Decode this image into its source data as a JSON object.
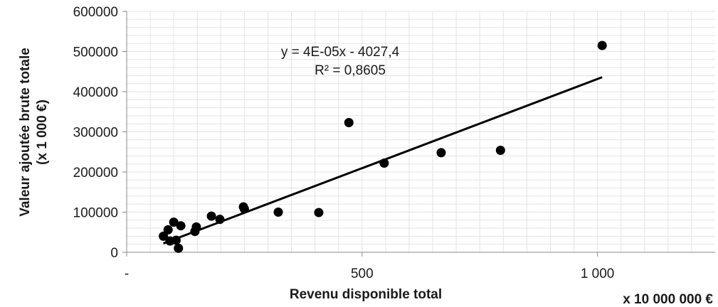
{
  "chart_data": {
    "type": "scatter",
    "xlabel": "Revenu disponible total",
    "xunit": "x 10 000 000 €",
    "ylabel_line1": "Valeur ajoutée brute totale",
    "ylabel_line2": "(x 1 000 €)",
    "xlim": [
      0,
      1250
    ],
    "ylim": [
      0,
      600000
    ],
    "x_ticks": [
      {
        "value": 0,
        "label": "-"
      },
      {
        "value": 500,
        "label": "500"
      },
      {
        "value": 1000,
        "label": "1 000"
      }
    ],
    "y_ticks": [
      {
        "value": 0,
        "label": "0"
      },
      {
        "value": 100000,
        "label": "100000"
      },
      {
        "value": 200000,
        "label": "200000"
      },
      {
        "value": 300000,
        "label": "300000"
      },
      {
        "value": 400000,
        "label": "400000"
      },
      {
        "value": 500000,
        "label": "500000"
      },
      {
        "value": 600000,
        "label": "600000"
      }
    ],
    "grid": true,
    "points": [
      {
        "x": 78,
        "y": 40000
      },
      {
        "x": 88,
        "y": 56000
      },
      {
        "x": 92,
        "y": 28000
      },
      {
        "x": 100,
        "y": 75000
      },
      {
        "x": 105,
        "y": 30000
      },
      {
        "x": 110,
        "y": 10000
      },
      {
        "x": 115,
        "y": 66000
      },
      {
        "x": 145,
        "y": 52000
      },
      {
        "x": 148,
        "y": 63000
      },
      {
        "x": 180,
        "y": 90000
      },
      {
        "x": 198,
        "y": 82000
      },
      {
        "x": 248,
        "y": 113000
      },
      {
        "x": 250,
        "y": 108000
      },
      {
        "x": 322,
        "y": 100000
      },
      {
        "x": 408,
        "y": 99000
      },
      {
        "x": 472,
        "y": 323000
      },
      {
        "x": 547,
        "y": 222000
      },
      {
        "x": 668,
        "y": 248000
      },
      {
        "x": 794,
        "y": 254000
      },
      {
        "x": 1010,
        "y": 515000
      }
    ],
    "trendline": {
      "x_start": 78,
      "y_start": 22000,
      "x_end": 1010,
      "y_end": 436000
    },
    "equation": "y = 4E-05x - 4027,4",
    "r_squared": "R² = 0,8605",
    "colors": {
      "marker": "#000000",
      "line": "#000000",
      "grid": "#e3e3e3",
      "axis": "#888888"
    }
  }
}
